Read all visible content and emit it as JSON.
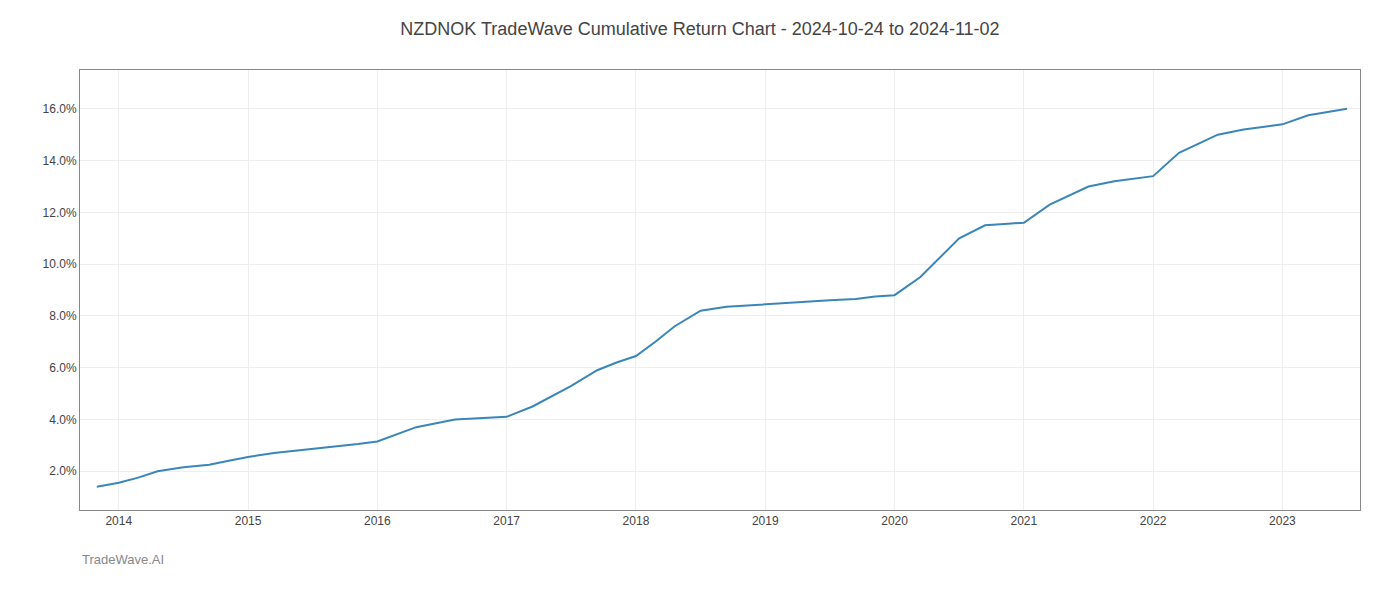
{
  "chart_data": {
    "type": "line",
    "title": "NZDNOK TradeWave Cumulative Return Chart - 2024-10-24 to 2024-11-02",
    "annotations": [
      "TradeWave.AI"
    ],
    "x": [
      2013.83,
      2014.0,
      2014.15,
      2014.3,
      2014.5,
      2014.7,
      2014.85,
      2015.0,
      2015.2,
      2015.5,
      2015.7,
      2015.85,
      2016.0,
      2016.3,
      2016.6,
      2016.85,
      2017.0,
      2017.2,
      2017.5,
      2017.7,
      2017.85,
      2018.0,
      2018.15,
      2018.3,
      2018.5,
      2018.7,
      2018.85,
      2019.0,
      2019.15,
      2019.3,
      2019.5,
      2019.7,
      2019.85,
      2020.0,
      2020.2,
      2020.5,
      2020.7,
      2020.85,
      2021.0,
      2021.2,
      2021.5,
      2021.7,
      2021.85,
      2022.0,
      2022.2,
      2022.5,
      2022.7,
      2022.85,
      2023.0,
      2023.2,
      2023.5
    ],
    "values": [
      1.4,
      1.55,
      1.75,
      2.0,
      2.15,
      2.25,
      2.4,
      2.55,
      2.7,
      2.85,
      2.95,
      3.05,
      3.15,
      3.7,
      4.0,
      4.05,
      4.1,
      4.5,
      5.3,
      5.9,
      6.2,
      6.45,
      7.0,
      7.6,
      8.2,
      8.35,
      8.4,
      8.45,
      8.5,
      8.55,
      8.6,
      8.65,
      8.75,
      8.8,
      9.5,
      11.0,
      11.5,
      11.55,
      11.6,
      12.3,
      13.0,
      13.2,
      13.3,
      13.4,
      14.3,
      15.0,
      15.2,
      15.3,
      15.4,
      15.75,
      16.0
    ],
    "color": "#3a86b8",
    "xlim": [
      2013.7,
      2023.6
    ],
    "xticks": [
      2014,
      2015,
      2016,
      2017,
      2018,
      2019,
      2020,
      2021,
      2022,
      2023
    ],
    "ylim": [
      0.5,
      17.5
    ],
    "yticks": [
      {
        "value": 2.0,
        "label": "2.0%"
      },
      {
        "value": 4.0,
        "label": "4.0%"
      },
      {
        "value": 6.0,
        "label": "6.0%"
      },
      {
        "value": 8.0,
        "label": "8.0%"
      },
      {
        "value": 10.0,
        "label": "10.0%"
      },
      {
        "value": 12.0,
        "label": "12.0%"
      },
      {
        "value": 14.0,
        "label": "14.0%"
      },
      {
        "value": 16.0,
        "label": "16.0%"
      }
    ],
    "grid": true
  }
}
